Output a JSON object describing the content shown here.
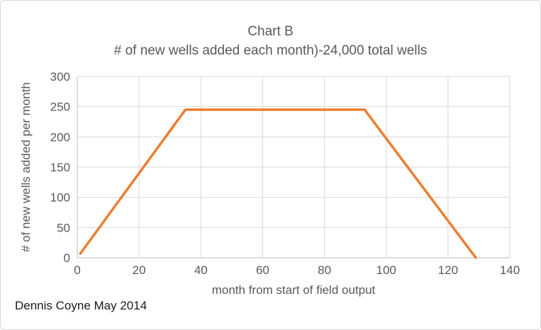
{
  "colors": {
    "line": "#ED7D31",
    "gridline": "#D9D9D9",
    "axis": "#BFBFBF",
    "text": "#595959",
    "credit": "#1a1a1a",
    "frame_border": "#D9D9D9",
    "background": "#FFFFFF"
  },
  "chart_data": {
    "type": "line",
    "title": "Chart B",
    "subtitle": "# of new wells added each month)-24,000 total wells",
    "xlabel": "month from start of field output",
    "ylabel": "# of new wells added per month",
    "xlim": [
      0,
      140
    ],
    "ylim": [
      0,
      300
    ],
    "x_ticks": [
      0,
      20,
      40,
      60,
      80,
      100,
      120,
      140
    ],
    "y_ticks": [
      0,
      50,
      100,
      150,
      200,
      250,
      300
    ],
    "grid": true,
    "legend": false,
    "annotation": "Dennis Coyne May 2014",
    "series": [
      {
        "name": "new wells added per month",
        "points": [
          [
            1,
            7
          ],
          [
            35,
            245
          ],
          [
            93,
            245
          ],
          [
            129,
            0
          ]
        ]
      }
    ]
  }
}
